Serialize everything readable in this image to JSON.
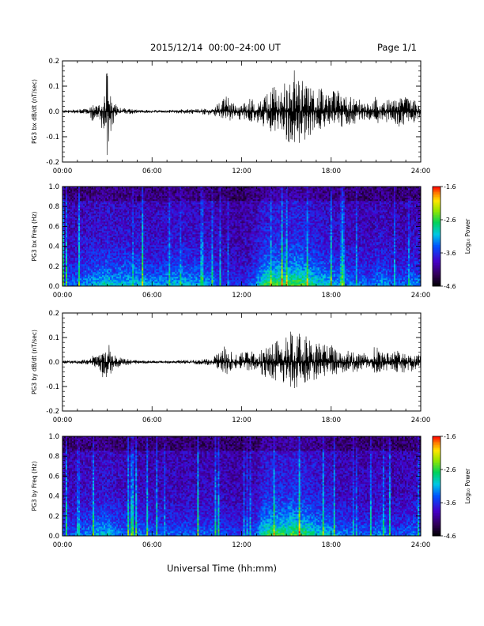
{
  "header": {
    "title": "2015/12/14  00:00–24:00 UT",
    "page": "Page 1/1"
  },
  "x_axis_label": "Universal Time (hh:mm)",
  "chart_data": [
    {
      "type": "line",
      "name": "bx-timeseries",
      "ylabel": "PG3 bx dB/dt (nT/sec)",
      "xlim": [
        0,
        24
      ],
      "ylim": [
        -0.2,
        0.2
      ],
      "yticks": [
        -0.2,
        -0.1,
        0.0,
        0.1,
        0.2
      ],
      "ytick_labels": [
        "-0.2",
        "-0.1",
        "0.0",
        "0.1",
        "0.2"
      ],
      "xticks": [
        0,
        6,
        12,
        18,
        24
      ],
      "xtick_labels": [
        "00:00",
        "06:00",
        "12:00",
        "18:00",
        "24:00"
      ],
      "envelope": {
        "x": [
          0,
          1,
          1.8,
          2.0,
          2.2,
          2.5,
          2.8,
          3.0,
          3.2,
          3.5,
          4.0,
          5.0,
          6.0,
          7.0,
          8.0,
          9.0,
          10.0,
          10.5,
          11.0,
          11.5,
          12.0,
          12.5,
          13.0,
          13.5,
          14.0,
          14.5,
          15.0,
          15.5,
          16.0,
          16.5,
          17.0,
          17.5,
          18.0,
          18.5,
          19.0,
          19.5,
          20.0,
          20.5,
          21.0,
          21.5,
          22.0,
          22.5,
          23.0,
          23.5,
          24.0
        ],
        "upper": [
          0.006,
          0.008,
          0.012,
          0.03,
          0.02,
          0.025,
          0.06,
          0.18,
          0.07,
          0.03,
          0.015,
          0.008,
          0.005,
          0.006,
          0.008,
          0.01,
          0.015,
          0.035,
          0.06,
          0.03,
          0.035,
          0.05,
          0.045,
          0.07,
          0.09,
          0.11,
          0.12,
          0.17,
          0.14,
          0.11,
          0.09,
          0.09,
          0.1,
          0.08,
          0.06,
          0.07,
          0.04,
          0.03,
          0.06,
          0.04,
          0.05,
          0.07,
          0.06,
          0.045,
          0.04
        ],
        "lower": [
          -0.006,
          -0.008,
          -0.012,
          -0.04,
          -0.02,
          -0.03,
          -0.12,
          -0.2,
          -0.09,
          -0.03,
          -0.015,
          -0.008,
          -0.005,
          -0.006,
          -0.008,
          -0.01,
          -0.015,
          -0.03,
          -0.045,
          -0.03,
          -0.035,
          -0.04,
          -0.045,
          -0.06,
          -0.08,
          -0.09,
          -0.12,
          -0.15,
          -0.13,
          -0.1,
          -0.08,
          -0.07,
          -0.06,
          -0.07,
          -0.05,
          -0.06,
          -0.035,
          -0.03,
          -0.05,
          -0.04,
          -0.045,
          -0.06,
          -0.055,
          -0.045,
          -0.04
        ]
      }
    },
    {
      "type": "heatmap",
      "name": "bx-spectrogram",
      "ylabel": "PG3 bx Freq (Hz)",
      "xlim": [
        0,
        24
      ],
      "ylim": [
        0,
        1
      ],
      "yticks": [
        0.0,
        0.2,
        0.4,
        0.6,
        0.8,
        1.0
      ],
      "ytick_labels": [
        "0.0",
        "0.2",
        "0.4",
        "0.6",
        "0.8",
        "1.0"
      ],
      "xticks": [
        0,
        6,
        12,
        18,
        24
      ],
      "xtick_labels": [
        "00:00",
        "06:00",
        "12:00",
        "18:00",
        "24:00"
      ],
      "colorbar": {
        "label": "Log₁₀ Power",
        "range": [
          -4.6,
          -1.6
        ],
        "ticks": [
          -1.6,
          -2.6,
          -3.6,
          -4.6
        ],
        "tick_labels": [
          "-1.6",
          "-2.6",
          "-3.6",
          "-4.6"
        ]
      },
      "activity": {
        "x": [
          0,
          1,
          2,
          2.5,
          3,
          3.5,
          4,
          5,
          6,
          7,
          8,
          9,
          10,
          11,
          12,
          12.5,
          13,
          13.5,
          14,
          14.5,
          15,
          15.5,
          16,
          16.5,
          17,
          17.5,
          18,
          18.5,
          19,
          19.5,
          20,
          20.5,
          21,
          21.5,
          22,
          22.5,
          23,
          23.5,
          24
        ],
        "level": [
          0.35,
          0.4,
          0.5,
          0.55,
          0.6,
          0.5,
          0.55,
          0.55,
          0.45,
          0.5,
          0.55,
          0.5,
          0.45,
          0.25,
          0.25,
          0.3,
          0.45,
          0.75,
          0.8,
          0.8,
          0.75,
          0.85,
          0.8,
          0.75,
          0.65,
          0.6,
          0.55,
          0.45,
          0.45,
          0.4,
          0.4,
          0.35,
          0.45,
          0.5,
          0.35,
          0.3,
          0.4,
          0.45,
          0.4
        ]
      }
    },
    {
      "type": "line",
      "name": "by-timeseries",
      "ylabel": "PG3 by dB/dt (nT/sec)",
      "xlim": [
        0,
        24
      ],
      "ylim": [
        -0.2,
        0.2
      ],
      "yticks": [
        -0.2,
        -0.1,
        0.0,
        0.1,
        0.2
      ],
      "ytick_labels": [
        "-0.2",
        "-0.1",
        "0.0",
        "0.1",
        "0.2"
      ],
      "xticks": [
        0,
        6,
        12,
        18,
        24
      ],
      "xtick_labels": [
        "00:00",
        "06:00",
        "12:00",
        "18:00",
        "24:00"
      ],
      "envelope": {
        "x": [
          0,
          1,
          1.8,
          2.0,
          2.2,
          2.5,
          2.8,
          3.0,
          3.2,
          3.5,
          4.0,
          5.0,
          6.0,
          7.0,
          8.0,
          9.0,
          10.0,
          10.5,
          11.0,
          11.5,
          12.0,
          12.5,
          13.0,
          13.5,
          14.0,
          14.5,
          15.0,
          15.5,
          16.0,
          16.5,
          17.0,
          17.5,
          18.0,
          18.5,
          19.0,
          19.5,
          20.0,
          20.5,
          21.0,
          21.5,
          22.0,
          22.5,
          23.0,
          23.5,
          24.0
        ],
        "upper": [
          0.006,
          0.008,
          0.01,
          0.035,
          0.02,
          0.03,
          0.06,
          0.1,
          0.05,
          0.03,
          0.015,
          0.008,
          0.005,
          0.006,
          0.008,
          0.01,
          0.015,
          0.04,
          0.09,
          0.035,
          0.04,
          0.045,
          0.04,
          0.09,
          0.07,
          0.09,
          0.1,
          0.18,
          0.13,
          0.09,
          0.08,
          0.07,
          0.07,
          0.06,
          0.05,
          0.06,
          0.04,
          0.03,
          0.07,
          0.045,
          0.04,
          0.05,
          0.05,
          0.04,
          0.03
        ],
        "lower": [
          -0.006,
          -0.008,
          -0.01,
          -0.04,
          -0.02,
          -0.03,
          -0.08,
          -0.1,
          -0.05,
          -0.03,
          -0.015,
          -0.008,
          -0.005,
          -0.006,
          -0.008,
          -0.01,
          -0.015,
          -0.03,
          -0.05,
          -0.03,
          -0.03,
          -0.035,
          -0.04,
          -0.06,
          -0.07,
          -0.08,
          -0.09,
          -0.11,
          -0.09,
          -0.08,
          -0.07,
          -0.06,
          -0.06,
          -0.05,
          -0.04,
          -0.05,
          -0.03,
          -0.03,
          -0.05,
          -0.04,
          -0.04,
          -0.045,
          -0.045,
          -0.04,
          -0.03
        ]
      }
    },
    {
      "type": "heatmap",
      "name": "by-spectrogram",
      "ylabel": "PG3 by Freq (Hz)",
      "xlim": [
        0,
        24
      ],
      "ylim": [
        0,
        1
      ],
      "yticks": [
        0.0,
        0.2,
        0.4,
        0.6,
        0.8,
        1.0
      ],
      "ytick_labels": [
        "0.0",
        "0.2",
        "0.4",
        "0.6",
        "0.8",
        "1.0"
      ],
      "xticks": [
        0,
        6,
        12,
        18,
        24
      ],
      "xtick_labels": [
        "00:00",
        "06:00",
        "12:00",
        "18:00",
        "24:00"
      ],
      "colorbar": {
        "label": "Log₁₀ Power",
        "range": [
          -4.6,
          -1.6
        ],
        "ticks": [
          -1.6,
          -2.6,
          -3.6,
          -4.6
        ],
        "tick_labels": [
          "-1.6",
          "-2.6",
          "-3.6",
          "-4.6"
        ]
      },
      "activity": {
        "x": [
          0,
          1,
          2,
          2.5,
          3,
          3.5,
          4,
          5,
          6,
          7,
          8,
          9,
          10,
          11,
          12,
          12.5,
          13,
          13.5,
          14,
          14.5,
          15,
          15.5,
          16,
          16.5,
          17,
          17.5,
          18,
          18.5,
          19,
          19.5,
          20,
          20.5,
          21,
          21.5,
          22,
          22.5,
          23,
          23.5,
          24
        ],
        "level": [
          0.3,
          0.35,
          0.45,
          0.5,
          0.55,
          0.45,
          0.4,
          0.4,
          0.35,
          0.35,
          0.35,
          0.35,
          0.35,
          0.3,
          0.25,
          0.3,
          0.4,
          0.7,
          0.75,
          0.75,
          0.75,
          0.85,
          0.75,
          0.7,
          0.6,
          0.55,
          0.5,
          0.4,
          0.4,
          0.35,
          0.35,
          0.3,
          0.4,
          0.45,
          0.3,
          0.3,
          0.35,
          0.4,
          0.35
        ]
      }
    }
  ]
}
